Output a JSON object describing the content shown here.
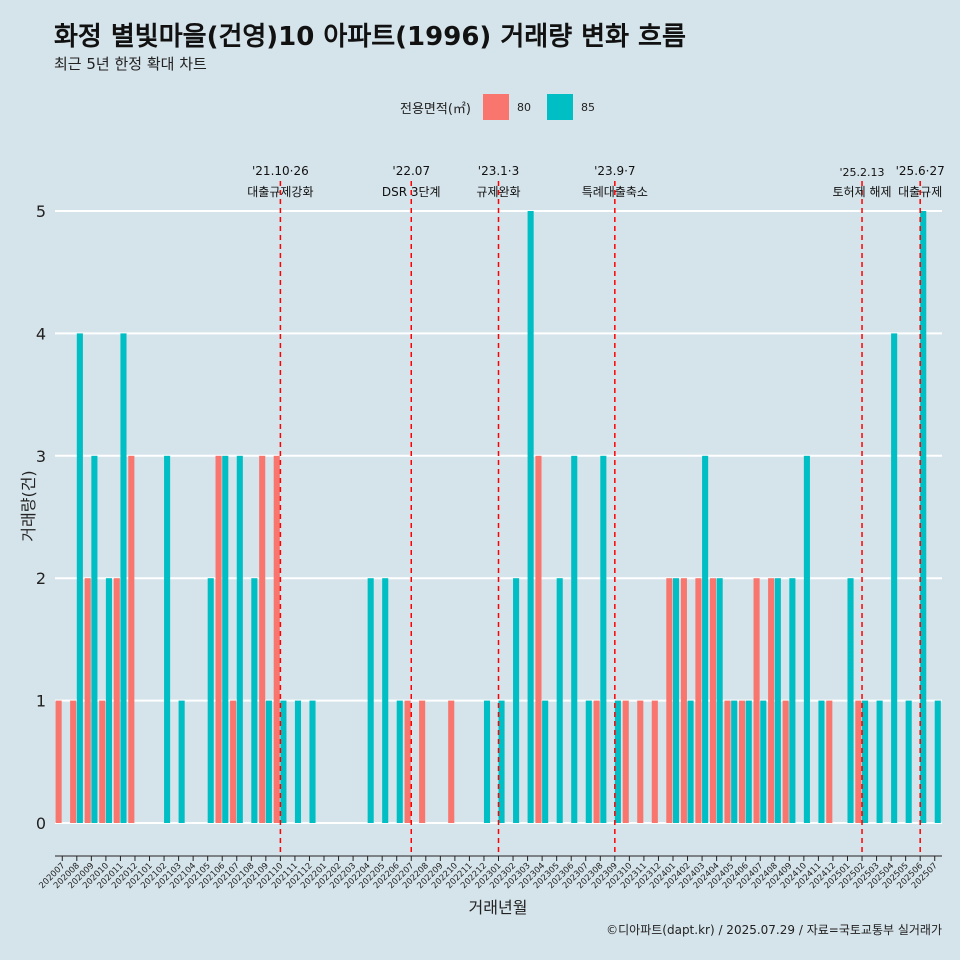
{
  "title": "화정 별빛마을(건영)10 아파트(1996) 거래량 변화 흐름",
  "subtitle": "최근 5년 한정 확대 차트",
  "legend": {
    "title": "전용면적(㎡)",
    "items": [
      {
        "label": "80",
        "color": "#f8766d"
      },
      {
        "label": "85",
        "color": "#00bfc4"
      }
    ]
  },
  "caption": "©디아파트(dapt.kr) / 2025.07.29 / 자료=국토교통부 실거래가",
  "chart_data": {
    "type": "bar",
    "xlabel": "거래년월",
    "ylabel": "거래량(건)",
    "ylim": [
      0,
      5
    ],
    "yticks": [
      0,
      1,
      2,
      3,
      4,
      5
    ],
    "categories": [
      "202007",
      "202008",
      "202009",
      "202010",
      "202011",
      "202012",
      "202101",
      "202102",
      "202103",
      "202104",
      "202105",
      "202106",
      "202107",
      "202108",
      "202109",
      "202110",
      "202111",
      "202112",
      "202201",
      "202202",
      "202203",
      "202204",
      "202205",
      "202206",
      "202207",
      "202208",
      "202209",
      "202210",
      "202211",
      "202212",
      "202301",
      "202302",
      "202303",
      "202304",
      "202305",
      "202306",
      "202307",
      "202308",
      "202309",
      "202310",
      "202311",
      "202312",
      "202401",
      "202402",
      "202403",
      "202404",
      "202405",
      "202406",
      "202407",
      "202408",
      "202409",
      "202410",
      "202411",
      "202412",
      "202501",
      "202502",
      "202503",
      "202504",
      "202505",
      "202506",
      "202507"
    ],
    "series": [
      {
        "name": "80",
        "color": "#f8766d",
        "values": [
          1,
          1,
          2,
          1,
          2,
          3,
          0,
          0,
          0,
          0,
          0,
          3,
          1,
          0,
          3,
          3,
          0,
          0,
          0,
          0,
          0,
          0,
          0,
          0,
          1,
          1,
          0,
          1,
          0,
          0,
          0,
          0,
          0,
          3,
          0,
          0,
          0,
          1,
          0,
          1,
          1,
          1,
          2,
          2,
          2,
          2,
          1,
          1,
          2,
          2,
          1,
          0,
          0,
          1,
          0,
          1,
          0,
          0,
          0,
          0,
          0
        ]
      },
      {
        "name": "85",
        "color": "#00bfc4",
        "values": [
          0,
          4,
          3,
          2,
          4,
          0,
          0,
          3,
          1,
          0,
          2,
          3,
          3,
          2,
          1,
          1,
          1,
          1,
          0,
          0,
          0,
          2,
          2,
          1,
          0,
          0,
          0,
          0,
          0,
          1,
          1,
          2,
          5,
          1,
          2,
          3,
          1,
          3,
          1,
          0,
          0,
          0,
          2,
          1,
          3,
          2,
          1,
          1,
          1,
          2,
          2,
          3,
          1,
          0,
          2,
          1,
          1,
          4,
          1,
          5,
          1
        ]
      }
    ],
    "annotations": [
      {
        "month": "202110",
        "date": "'21.10·26",
        "label": "대출규제강화"
      },
      {
        "month": "202207",
        "date": "'22.07",
        "label": "DSR 3단계"
      },
      {
        "month": "202301",
        "date": "'23.1·3",
        "label": "규제완화"
      },
      {
        "month": "202309",
        "date": "'23.9·7",
        "label": "특례대출축소"
      },
      {
        "month": "202502",
        "date": "'25.2.13",
        "label": "토허제 해제"
      },
      {
        "month": "202506",
        "date": "'25.6·27",
        "label": "대출규제"
      }
    ]
  }
}
